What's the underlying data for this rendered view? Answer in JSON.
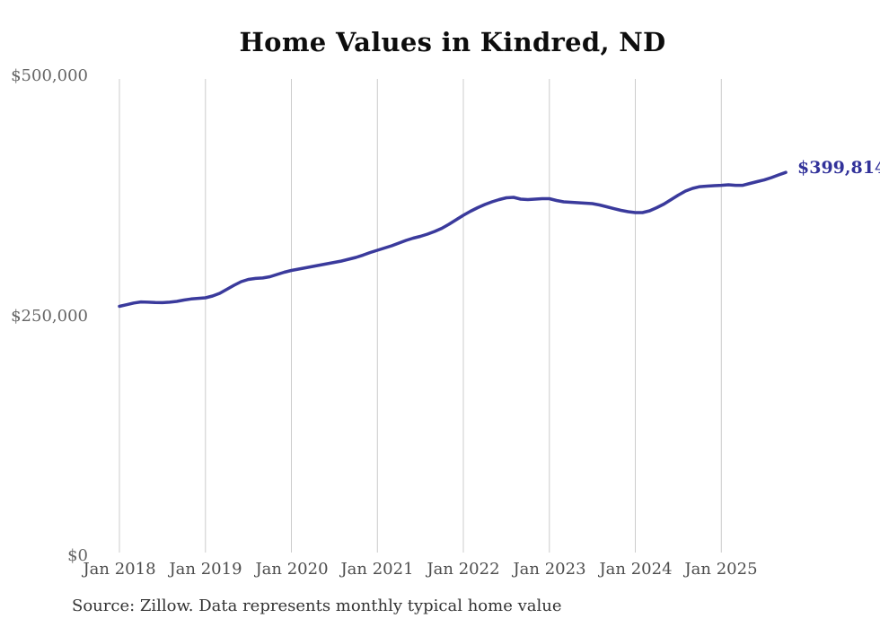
{
  "chart": {
    "title": "Home Values in Kindred, ND",
    "source_note": "Source: Zillow. Data represents monthly typical home value",
    "end_label": "$399,814",
    "colors": {
      "line": "#3a3a9c",
      "end_label": "#32329a",
      "grid": "#cccccc",
      "title": "#0d0d0d",
      "y_tick": "#666666",
      "x_tick": "#4d4d4d",
      "source": "#333333"
    }
  },
  "chart_data": {
    "type": "line",
    "title": "Home Values in Kindred, ND",
    "xlabel": "",
    "ylabel": "",
    "ylim": [
      0,
      500000
    ],
    "grid": "vertical-only",
    "legend": "none",
    "frequency": "monthly",
    "x_range": [
      "Jan 2018",
      "Oct 2025"
    ],
    "y_ticks": [
      {
        "value": 0,
        "label": "$0"
      },
      {
        "value": 250000,
        "label": "$250,000"
      },
      {
        "value": 500000,
        "label": "$500,000"
      }
    ],
    "x_ticks": [
      {
        "month_index": 0,
        "label": "Jan 2018"
      },
      {
        "month_index": 12,
        "label": "Jan 2019"
      },
      {
        "month_index": 24,
        "label": "Jan 2020"
      },
      {
        "month_index": 36,
        "label": "Jan 2021"
      },
      {
        "month_index": 48,
        "label": "Jan 2022"
      },
      {
        "month_index": 60,
        "label": "Jan 2023"
      },
      {
        "month_index": 72,
        "label": "Jan 2024"
      },
      {
        "month_index": 84,
        "label": "Jan 2025"
      }
    ],
    "last_value": 399814,
    "last_value_label": "$399,814",
    "values_monthly": [
      260300,
      262000,
      263700,
      264900,
      264600,
      264200,
      264100,
      264600,
      265400,
      266800,
      267900,
      268600,
      269200,
      271000,
      273800,
      278000,
      282200,
      286000,
      288300,
      289300,
      289800,
      291100,
      293500,
      295800,
      297700,
      299100,
      300500,
      301900,
      303300,
      304700,
      306100,
      307500,
      309300,
      311200,
      313600,
      316400,
      318700,
      321000,
      323400,
      326200,
      329000,
      331300,
      333200,
      335500,
      338300,
      341600,
      345800,
      350500,
      355100,
      359300,
      363100,
      366400,
      369200,
      371500,
      373400,
      373800,
      372000,
      371500,
      372000,
      372400,
      372400,
      370600,
      369200,
      368700,
      368200,
      367800,
      367300,
      365900,
      364000,
      362100,
      360300,
      358900,
      357900,
      357900,
      359800,
      363100,
      366800,
      371500,
      376200,
      380400,
      383200,
      385000,
      385500,
      386000,
      386400,
      386900,
      386400,
      386400,
      388300,
      390200,
      392000,
      394400,
      397200,
      399814
    ]
  }
}
